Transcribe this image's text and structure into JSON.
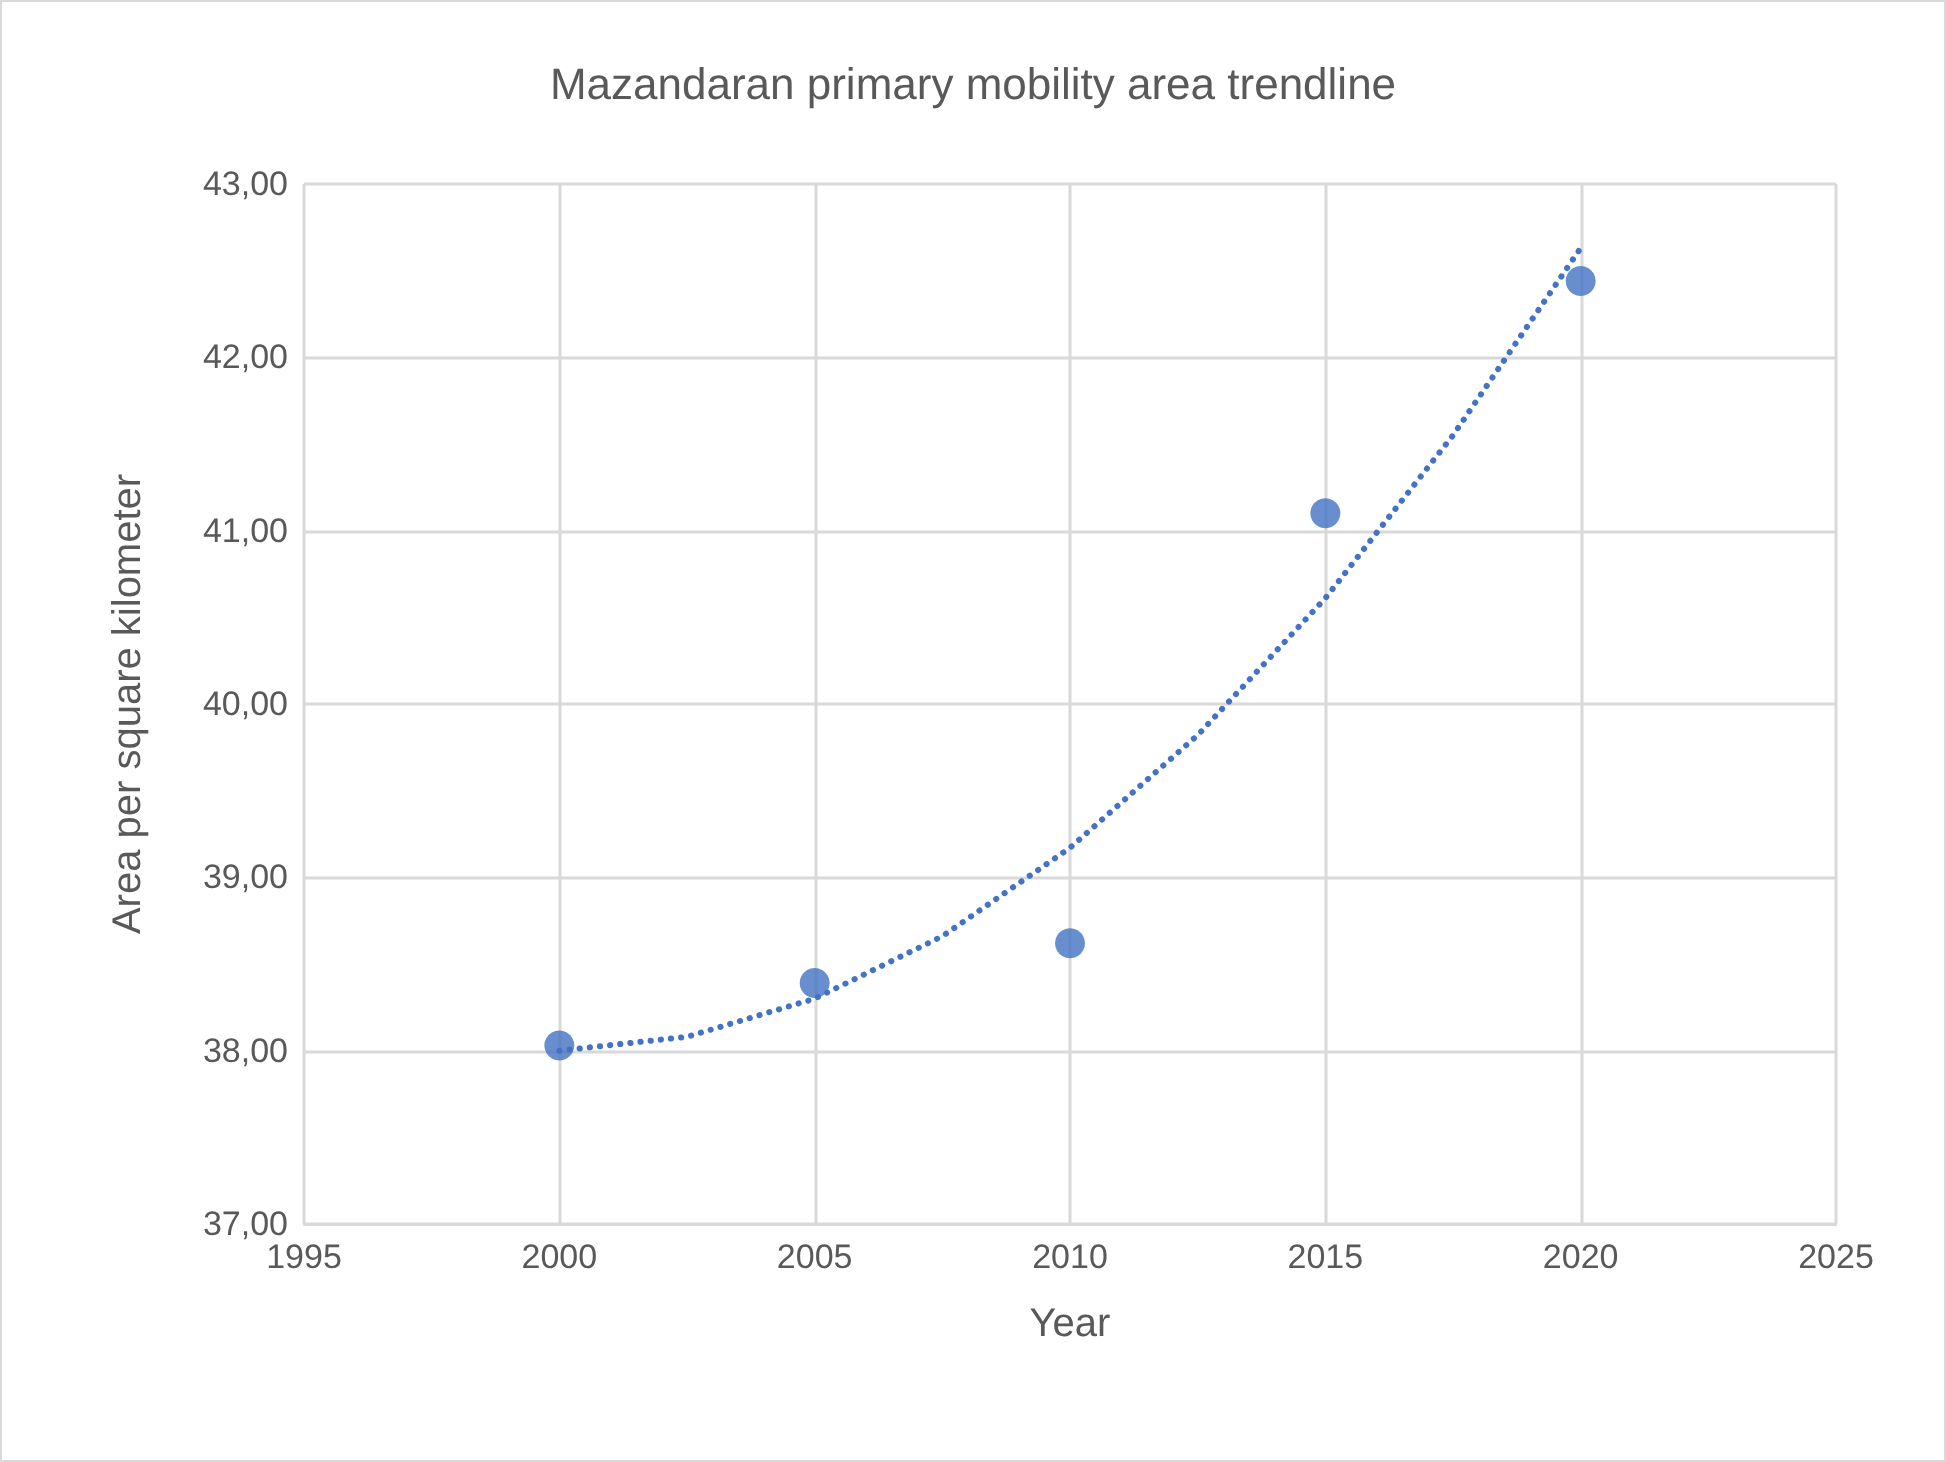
{
  "chart_data": {
    "type": "scatter",
    "title": "Mazandaran primary mobility area trendline",
    "xlabel": "Year",
    "ylabel": "Area per square kilometer",
    "xlim": [
      1995,
      2025
    ],
    "xticks": [
      1995,
      2000,
      2005,
      2010,
      2015,
      2020,
      2025
    ],
    "ylim": [
      37,
      43
    ],
    "yticks": [
      {
        "value": 37,
        "label": "37,00"
      },
      {
        "value": 38,
        "label": "38,00"
      },
      {
        "value": 39,
        "label": "39,00"
      },
      {
        "value": 40,
        "label": "40,00"
      },
      {
        "value": 41,
        "label": "41,00"
      },
      {
        "value": 42,
        "label": "42,00"
      },
      {
        "value": 43,
        "label": "43,00"
      }
    ],
    "grid": true,
    "series": [
      {
        "color": "#4472c4",
        "marker": "circle",
        "x": [
          2000,
          2005,
          2010,
          2015,
          2020
        ],
        "values": [
          38.03,
          38.39,
          38.62,
          41.1,
          42.44
        ]
      },
      {
        "type": "line",
        "color": "#4472c4",
        "marker": "none",
        "line_style": "dotted",
        "x": [
          2000,
          2002.5,
          2005,
          2007.5,
          2010,
          2012.5,
          2015,
          2017.5,
          2020
        ],
        "values": [
          38.0,
          38.08,
          38.3,
          38.66,
          39.17,
          39.82,
          40.61,
          41.55,
          42.63
        ]
      }
    ]
  }
}
